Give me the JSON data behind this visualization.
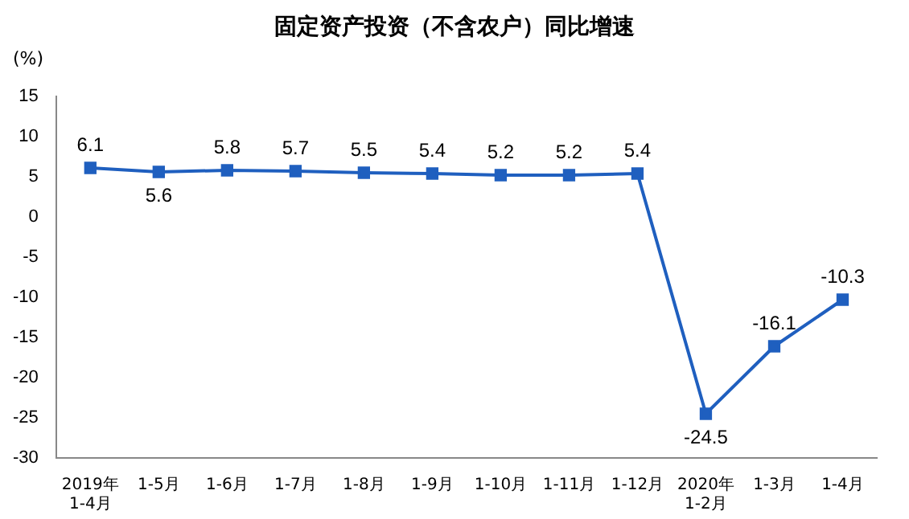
{
  "chart_data": {
    "type": "line",
    "title": "固定资产投资（不含农户）同比增速",
    "ylabel": "(%)",
    "categories": [
      "2019年\n1-4月",
      "1-5月",
      "1-6月",
      "1-7月",
      "1-8月",
      "1-9月",
      "1-10月",
      "1-11月",
      "1-12月",
      "2020年\n1-2月",
      "1-3月",
      "1-4月"
    ],
    "series": [
      {
        "color": "#1f5fbf",
        "values": [
          6.1,
          5.6,
          5.8,
          5.7,
          5.5,
          5.4,
          5.2,
          5.2,
          5.4,
          -24.5,
          -16.1,
          -10.3
        ]
      }
    ],
    "ylim": [
      -30,
      15
    ],
    "yticks": [
      -30,
      -25,
      -20,
      -15,
      -10,
      -5,
      0,
      5,
      10,
      15
    ],
    "grid": false,
    "legend": false,
    "marker": "square",
    "line_style": "solid",
    "data_labels": true
  }
}
